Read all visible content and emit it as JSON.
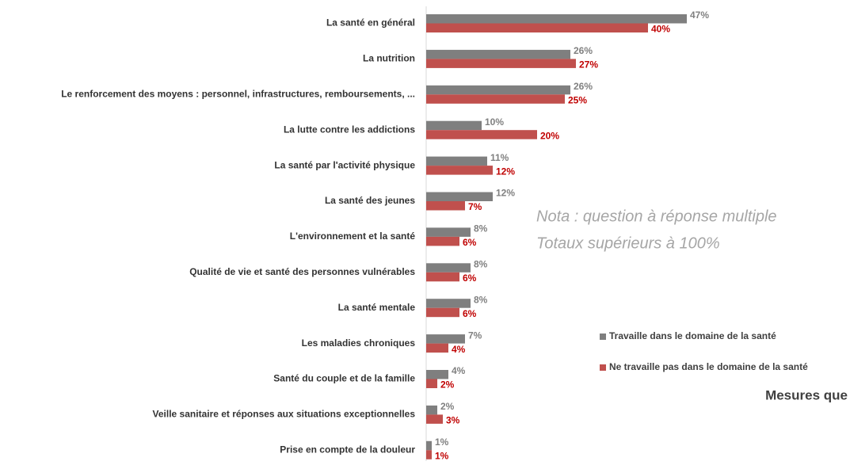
{
  "chart_data": {
    "type": "barh",
    "title": "Mesures que",
    "annotations": [
      "Nota : question à réponse multiple",
      "Totaux supérieurs à 100%"
    ],
    "categories": [
      "La santé en général",
      "La nutrition",
      "Le renforcement des moyens : personnel, infrastructures, remboursements, ...",
      "La lutte contre les addictions",
      "La santé par l'activité physique",
      "La santé des jeunes",
      "L'environnement et la santé",
      "Qualité de vie et santé des personnes vulnérables",
      "La santé mentale",
      "Les maladies chroniques",
      "Santé du couple et de la famille",
      "Veille sanitaire et réponses aux situations exceptionnelles",
      "Prise en compte de la douleur"
    ],
    "series": [
      {
        "name": "Travaille dans le domaine de la santé",
        "color": "#7f7f7f",
        "label_color": "#808080",
        "values": [
          47,
          26,
          26,
          10,
          11,
          12,
          8,
          8,
          8,
          7,
          4,
          2,
          1
        ],
        "value_labels": [
          "47%",
          "26%",
          "26%",
          "10%",
          "11%",
          "12%",
          "8%",
          "8%",
          "8%",
          "7%",
          "4%",
          "2%",
          "1%"
        ]
      },
      {
        "name": "Ne travaille pas dans le domaine de la santé",
        "color": "#c0504d",
        "label_color": "#c00000",
        "values": [
          40,
          27,
          25,
          20,
          12,
          7,
          6,
          6,
          6,
          4,
          2,
          3,
          1
        ],
        "value_labels": [
          "40%",
          "27%",
          "25%",
          "20%",
          "12%",
          "7%",
          "6%",
          "6%",
          "6%",
          "4%",
          "2%",
          "3%",
          "1%"
        ]
      }
    ],
    "legend": "right"
  }
}
